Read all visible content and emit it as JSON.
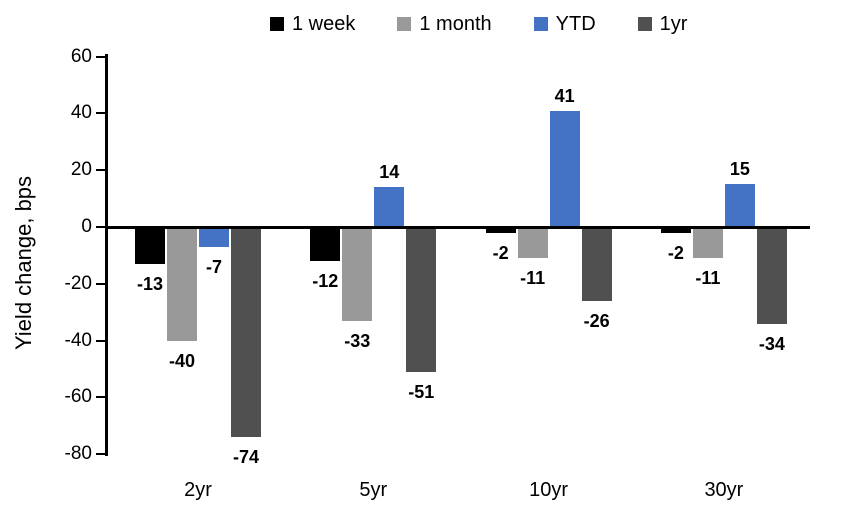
{
  "chart_data": {
    "type": "bar",
    "title": "",
    "ylabel": "Yield change, bps",
    "xlabel": "",
    "categories": [
      "2yr",
      "5yr",
      "10yr",
      "30yr"
    ],
    "series": [
      {
        "name": "1 week",
        "color": "#000000",
        "values": [
          -13,
          -12,
          -2,
          -2
        ]
      },
      {
        "name": "1 month",
        "color": "#999999",
        "values": [
          -40,
          -33,
          -11,
          -11
        ]
      },
      {
        "name": "YTD",
        "color": "#4472C4",
        "values": [
          -7,
          14,
          41,
          15
        ]
      },
      {
        "name": "1yr",
        "color": "#505050",
        "values": [
          -74,
          -51,
          -26,
          -34
        ]
      }
    ],
    "yticks": [
      60,
      40,
      20,
      0,
      -20,
      -40,
      -60,
      -80
    ],
    "ylim": [
      -80,
      60
    ],
    "grid": false,
    "legend_position": "top",
    "value_labels": "outside-end",
    "axis_color": "#000000",
    "background_color": "#ffffff"
  }
}
